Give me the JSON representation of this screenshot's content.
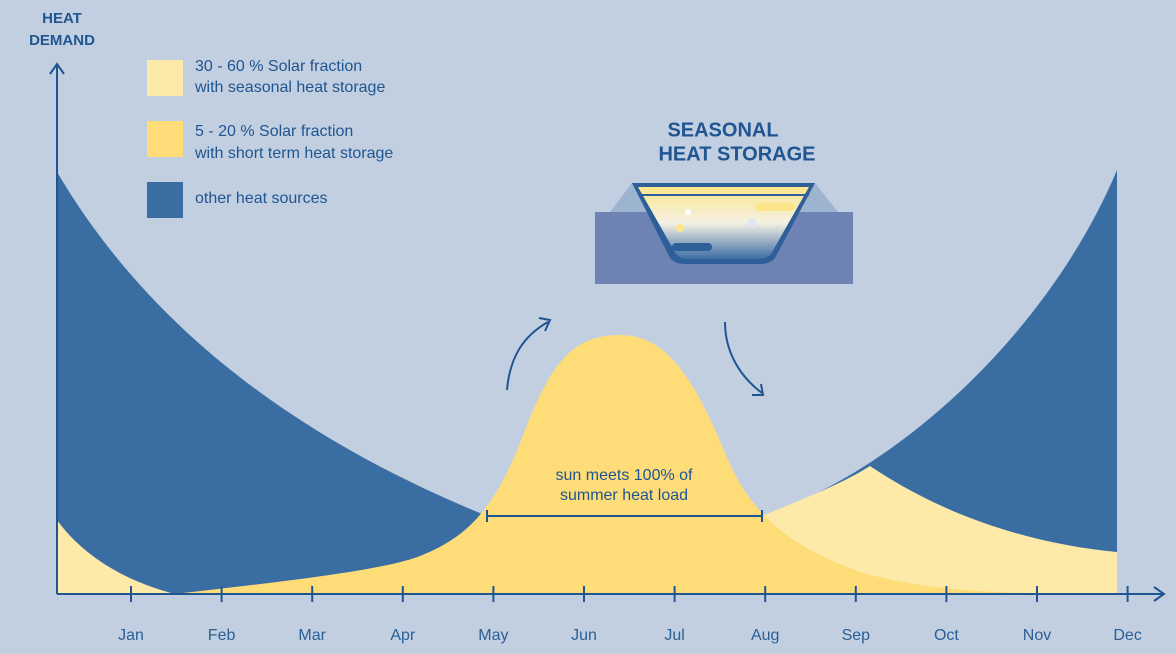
{
  "y_axis_label": [
    "HEAT",
    "DEMAND"
  ],
  "months": [
    "Jan",
    "Feb",
    "Mar",
    "Apr",
    "May",
    "Jun",
    "Jul",
    "Aug",
    "Sep",
    "Oct",
    "Nov",
    "Dec"
  ],
  "legend": [
    {
      "lines": [
        "30 - 60 % Solar fraction",
        "with seasonal heat storage"
      ]
    },
    {
      "lines": [
        "5 - 20 % Solar fraction",
        "with short term heat storage"
      ]
    },
    {
      "lines": [
        "other heat sources"
      ]
    }
  ],
  "storage_title": [
    "SEASONAL",
    "HEAT STORAGE"
  ],
  "annotation": [
    "sun meets 100% of",
    "summer heat load"
  ]
}
